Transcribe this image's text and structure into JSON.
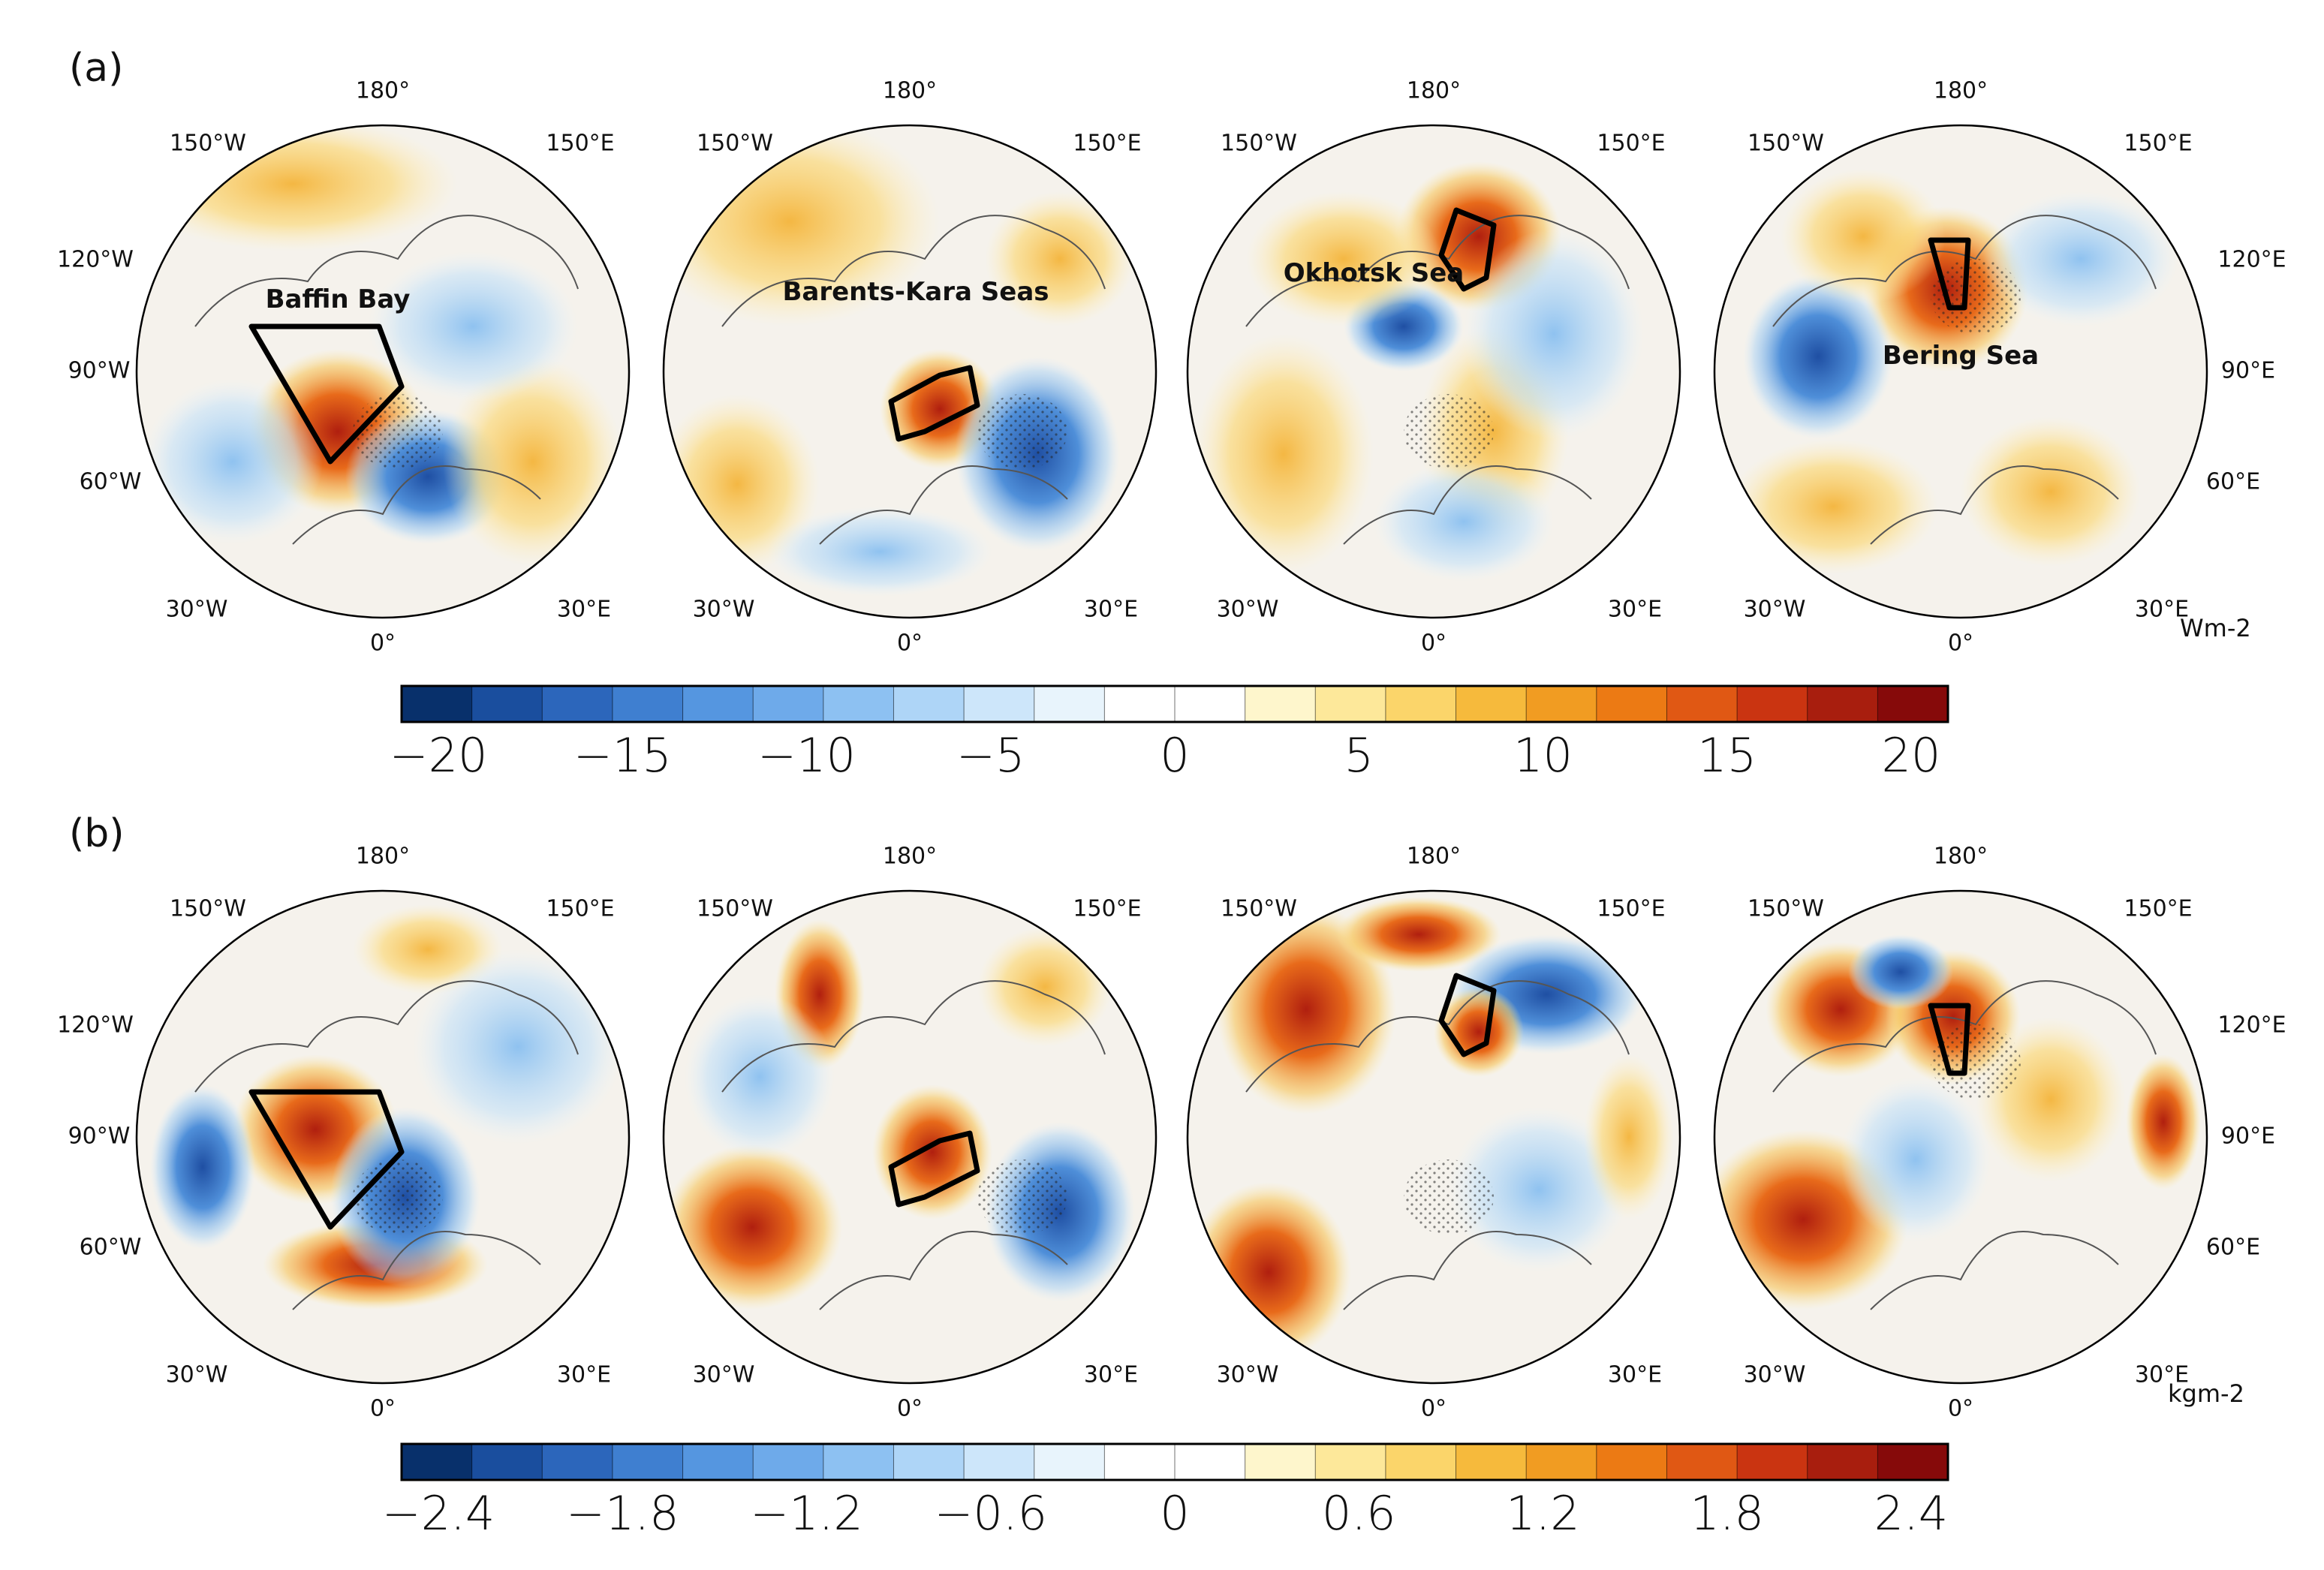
{
  "panels": [
    {
      "tag": "(a)",
      "unit": "Wm-2",
      "lon_labels": {
        "top": "180°",
        "upper_left": "150°W",
        "upper_right": "150°E",
        "mid_left": "120°W",
        "mid_right": "120°E",
        "left": "90°W",
        "right": "90°E",
        "lower_left_mid": "60°W",
        "lower_right_mid": "60°E",
        "lower_left": "30°W",
        "lower_right": "30°E",
        "bottom": "0°"
      },
      "regions": [
        "Baffin Bay",
        "Barents-Kara Seas",
        "Okhotsk Sea",
        "Bering Sea"
      ]
    },
    {
      "tag": "(b)",
      "unit": "kgm-2",
      "lon_labels": {
        "top": "180°",
        "upper_left": "150°W",
        "upper_right": "150°E",
        "mid_left": "120°W",
        "mid_right": "120°E",
        "left": "90°W",
        "right": "90°E",
        "lower_left_mid": "60°W",
        "lower_right_mid": "60°E",
        "lower_left": "30°W",
        "lower_right": "30°E",
        "bottom": "0°"
      },
      "regions": []
    }
  ],
  "colors": {
    "scale": [
      "#08306b",
      "#1a4e9e",
      "#2c66bb",
      "#3f7fd0",
      "#5596e0",
      "#6eaaea",
      "#8dc1f2",
      "#aed5f7",
      "#cde6fa",
      "#e8f4fc",
      "#ffffff",
      "#ffffff",
      "#fef6cc",
      "#fde89a",
      "#fbd56a",
      "#f6ba3c",
      "#f19c22",
      "#ec7a14",
      "#e05814",
      "#ca3411",
      "#a81e0e",
      "#860a0a"
    ]
  },
  "chart_data": [
    {
      "type": "heatmap",
      "title": "(a)",
      "projection": "North polar stereographic",
      "variable_unit": "Wm-2",
      "maps": [
        {
          "region": "Baffin Bay",
          "box": "Baffin Bay sector",
          "sign_inside_box": "positive"
        },
        {
          "region": "Barents-Kara Seas",
          "box": "Barents-Kara sector",
          "sign_inside_box": "positive"
        },
        {
          "region": "Okhotsk Sea",
          "box": "Okhotsk sector",
          "sign_inside_box": "positive"
        },
        {
          "region": "Bering Sea",
          "box": "Bering sector",
          "sign_inside_box": "positive"
        }
      ],
      "colorbar": {
        "min": -21,
        "max": 21,
        "step": 2,
        "tick_values": [
          -20,
          -15,
          -10,
          -5,
          0,
          5,
          10,
          15,
          20
        ],
        "tick_labels": [
          "−20",
          "−15",
          "−10",
          "−5",
          "0",
          "5",
          "10",
          "15",
          "20"
        ]
      }
    },
    {
      "type": "heatmap",
      "title": "(b)",
      "projection": "North polar stereographic",
      "variable_unit": "kgm-2",
      "maps": [
        {
          "region": "Baffin Bay",
          "sign_inside_box": "positive"
        },
        {
          "region": "Barents-Kara Seas",
          "sign_inside_box": "positive"
        },
        {
          "region": "Okhotsk Sea",
          "sign_inside_box": "positive"
        },
        {
          "region": "Bering Sea",
          "sign_inside_box": "positive"
        }
      ],
      "colorbar": {
        "min": -2.52,
        "max": 2.52,
        "step": 0.24,
        "tick_values": [
          -2.4,
          -1.8,
          -1.2,
          -0.6,
          0,
          0.6,
          1.2,
          1.8,
          2.4
        ],
        "tick_labels": [
          "−2.4",
          "−1.8",
          "−1.2",
          "−0.6",
          "0",
          "0.6",
          "1.2",
          "1.8",
          "2.4"
        ]
      }
    }
  ]
}
